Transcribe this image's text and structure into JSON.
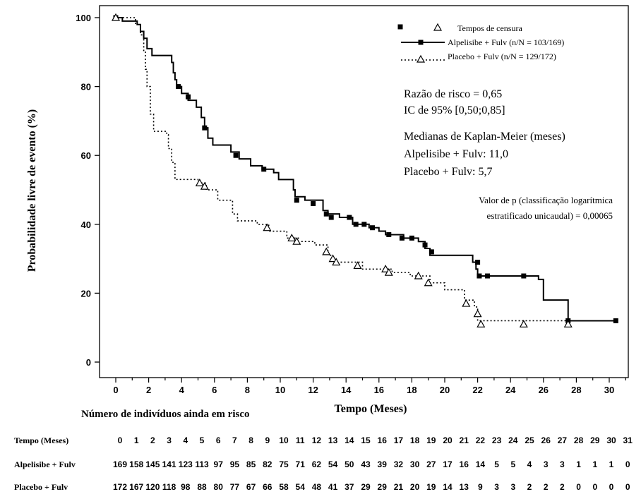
{
  "chart_data": {
    "type": "line",
    "subtype": "kaplan-meier",
    "xlabel": "Tempo (Meses)",
    "ylabel": "Probabilidade livre de evento (%)",
    "xlim": [
      0,
      31
    ],
    "ylim": [
      0,
      100
    ],
    "xticks": [
      0,
      2,
      4,
      6,
      8,
      10,
      12,
      14,
      16,
      18,
      20,
      22,
      24,
      26,
      28,
      30
    ],
    "yticks": [
      0,
      20,
      40,
      60,
      80,
      100
    ],
    "grid": false,
    "legend": {
      "position": "top-right",
      "censor_label": "Tempos de censura",
      "entries": [
        "Alpelisibe + Fulv (n/N = 103/169)",
        "Placebo + Fulv (n/N = 129/172)"
      ]
    },
    "annotations": {
      "hazard": [
        "Razão de risco = 0,65",
        "IC de 95% [0,50;0,85]"
      ],
      "medians": [
        "Medianas de Kaplan-Meier (meses)",
        "Alpelisibe + Fulv: 11,0",
        "Placebo + Fulv: 5,7"
      ],
      "pvalue": [
        "Valor de p (classificação logarítmica",
        "estratificado unicaudal) = 0,00065"
      ]
    },
    "series": [
      {
        "name": "Alpelisibe + Fulv (n/N = 103/169)",
        "line_style": "solid",
        "marker": "square",
        "steps": [
          [
            0,
            100
          ],
          [
            0.4,
            99
          ],
          [
            1.3,
            98
          ],
          [
            1.5,
            96
          ],
          [
            1.7,
            94
          ],
          [
            1.9,
            91
          ],
          [
            2.2,
            89
          ],
          [
            3.4,
            87
          ],
          [
            3.5,
            84
          ],
          [
            3.6,
            82
          ],
          [
            3.7,
            80
          ],
          [
            4.0,
            78
          ],
          [
            4.4,
            76
          ],
          [
            4.9,
            74
          ],
          [
            5.2,
            71
          ],
          [
            5.4,
            68
          ],
          [
            5.6,
            65
          ],
          [
            5.9,
            63
          ],
          [
            7.0,
            61
          ],
          [
            7.5,
            59
          ],
          [
            8.2,
            57
          ],
          [
            8.9,
            56
          ],
          [
            9.6,
            55
          ],
          [
            9.9,
            53
          ],
          [
            10.8,
            50
          ],
          [
            10.9,
            48
          ],
          [
            11.5,
            47
          ],
          [
            12.6,
            44
          ],
          [
            12.9,
            43
          ],
          [
            13.6,
            42
          ],
          [
            14.4,
            40
          ],
          [
            15.4,
            39
          ],
          [
            16.0,
            38
          ],
          [
            16.4,
            37
          ],
          [
            17.5,
            36
          ],
          [
            18.4,
            35
          ],
          [
            18.8,
            33
          ],
          [
            19.1,
            31
          ],
          [
            20.0,
            31
          ],
          [
            21.7,
            29
          ],
          [
            21.9,
            27
          ],
          [
            22.0,
            25
          ],
          [
            25.7,
            24
          ],
          [
            26.0,
            18
          ],
          [
            27.5,
            12
          ],
          [
            30.4,
            12
          ]
        ],
        "censors": [
          [
            0,
            100
          ],
          [
            3.8,
            80
          ],
          [
            4.4,
            77
          ],
          [
            5.4,
            68
          ],
          [
            7.3,
            60
          ],
          [
            9.0,
            56
          ],
          [
            11.0,
            47
          ],
          [
            12.0,
            46
          ],
          [
            12.8,
            43
          ],
          [
            13.1,
            42
          ],
          [
            14.2,
            42
          ],
          [
            14.6,
            40
          ],
          [
            15.1,
            40
          ],
          [
            15.6,
            39
          ],
          [
            16.6,
            37
          ],
          [
            17.4,
            36
          ],
          [
            18.0,
            36
          ],
          [
            18.8,
            34
          ],
          [
            19.2,
            32
          ],
          [
            22.0,
            29
          ],
          [
            22.1,
            25
          ],
          [
            22.6,
            25
          ],
          [
            24.8,
            25
          ],
          [
            27.5,
            12
          ],
          [
            30.4,
            12
          ]
        ]
      },
      {
        "name": "Placebo + Fulv (n/N = 129/172)",
        "line_style": "dotted",
        "marker": "triangle",
        "steps": [
          [
            0,
            100
          ],
          [
            1.2,
            98
          ],
          [
            1.5,
            95
          ],
          [
            1.7,
            90
          ],
          [
            1.8,
            85
          ],
          [
            1.9,
            80
          ],
          [
            2.1,
            72
          ],
          [
            2.3,
            67
          ],
          [
            3.1,
            66
          ],
          [
            3.2,
            62
          ],
          [
            3.4,
            58
          ],
          [
            3.6,
            53
          ],
          [
            5.0,
            52
          ],
          [
            5.5,
            50
          ],
          [
            6.2,
            47
          ],
          [
            7.1,
            43
          ],
          [
            7.4,
            41
          ],
          [
            8.6,
            40
          ],
          [
            9.3,
            38
          ],
          [
            10.4,
            36
          ],
          [
            11.1,
            35
          ],
          [
            12.1,
            34
          ],
          [
            12.9,
            31
          ],
          [
            13.2,
            29
          ],
          [
            15.0,
            27
          ],
          [
            16.8,
            26
          ],
          [
            17.9,
            25
          ],
          [
            19.1,
            23
          ],
          [
            20.0,
            21
          ],
          [
            21.2,
            18
          ],
          [
            21.8,
            16
          ],
          [
            22.0,
            12
          ],
          [
            27.5,
            12
          ]
        ],
        "censors": [
          [
            0,
            100
          ],
          [
            5.1,
            52
          ],
          [
            5.4,
            51
          ],
          [
            9.2,
            39
          ],
          [
            10.7,
            36
          ],
          [
            11.0,
            35
          ],
          [
            12.8,
            32
          ],
          [
            13.2,
            30
          ],
          [
            13.4,
            29
          ],
          [
            14.7,
            28
          ],
          [
            16.4,
            27
          ],
          [
            16.6,
            26
          ],
          [
            18.4,
            25
          ],
          [
            19.0,
            23
          ],
          [
            21.3,
            17
          ],
          [
            22.0,
            14
          ],
          [
            22.2,
            11
          ],
          [
            24.8,
            11
          ],
          [
            27.5,
            11
          ]
        ]
      }
    ]
  },
  "risk_table": {
    "title": "Número de indivíduos ainda em risco",
    "rows": [
      {
        "label": "Tempo (Meses)",
        "values": [
          "0",
          "1",
          "2",
          "3",
          "4",
          "5",
          "6",
          "7",
          "8",
          "9",
          "10",
          "11",
          "12",
          "13",
          "14",
          "15",
          "16",
          "17",
          "18",
          "19",
          "20",
          "21",
          "22",
          "23",
          "24",
          "25",
          "26",
          "27",
          "28",
          "29",
          "30",
          "31"
        ]
      },
      {
        "label": "Alpelisibe + Fulv",
        "values": [
          "169",
          "158",
          "145",
          "141",
          "123",
          "113",
          "97",
          "95",
          "85",
          "82",
          "75",
          "71",
          "62",
          "54",
          "50",
          "43",
          "39",
          "32",
          "30",
          "27",
          "17",
          "16",
          "14",
          "5",
          "5",
          "4",
          "3",
          "3",
          "1",
          "1",
          "1",
          "0"
        ]
      },
      {
        "label": "Placebo + Fulv",
        "values": [
          "172",
          "167",
          "120",
          "118",
          "98",
          "88",
          "80",
          "77",
          "67",
          "66",
          "58",
          "54",
          "48",
          "41",
          "37",
          "29",
          "29",
          "21",
          "20",
          "19",
          "14",
          "13",
          "9",
          "3",
          "3",
          "2",
          "2",
          "2",
          "0",
          "0",
          "0",
          "0"
        ]
      }
    ]
  }
}
